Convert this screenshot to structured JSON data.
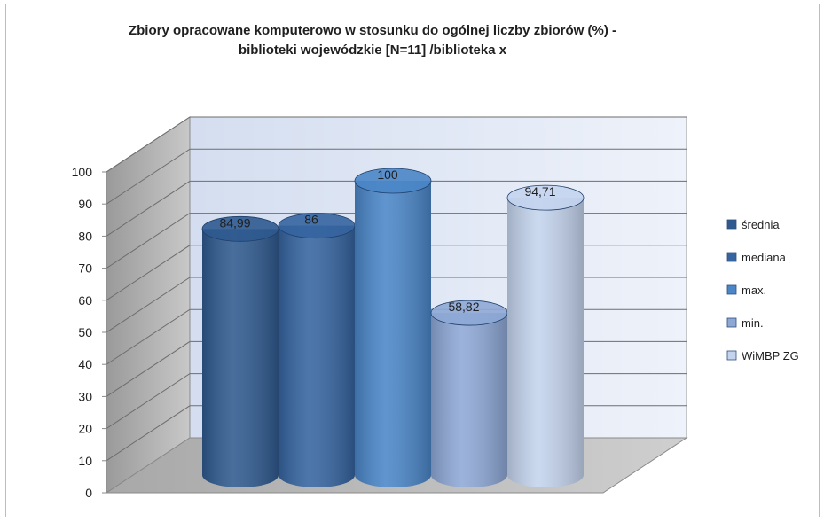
{
  "chart_data": {
    "type": "bar",
    "style": "3d-cylinder",
    "title": "Zbiory opracowane komputerowo w stosunku do ogólnej liczby zbiorów (%) - biblioteki wojewódzkie  [N=11] /biblioteka x",
    "title_lines": [
      "Zbiory opracowane komputerowo w stosunku do ogólnej liczby zbiorów (%) -",
      "biblioteki wojewódzkie  [N=11] /biblioteka x"
    ],
    "xlabel": "",
    "ylabel": "",
    "ylim": [
      0,
      100
    ],
    "yticks": [
      "0",
      "10",
      "20",
      "30",
      "40",
      "50",
      "60",
      "70",
      "80",
      "90",
      "100"
    ],
    "grid": true,
    "legend_position": "right",
    "series": [
      {
        "name": "średnia",
        "value": 84.99,
        "label": "84,99",
        "color": "#2f5a8f"
      },
      {
        "name": "mediana",
        "value": 86,
        "label": "86",
        "color": "#3564a0"
      },
      {
        "name": "max.",
        "value": 100,
        "label": "100",
        "color": "#4a86c8"
      },
      {
        "name": "min.",
        "value": 58.82,
        "label": "58,82",
        "color": "#8ea8d6"
      },
      {
        "name": "WiMBP ZG",
        "value": 94.71,
        "label": "94,71",
        "color": "#c4d4ee"
      }
    ]
  }
}
